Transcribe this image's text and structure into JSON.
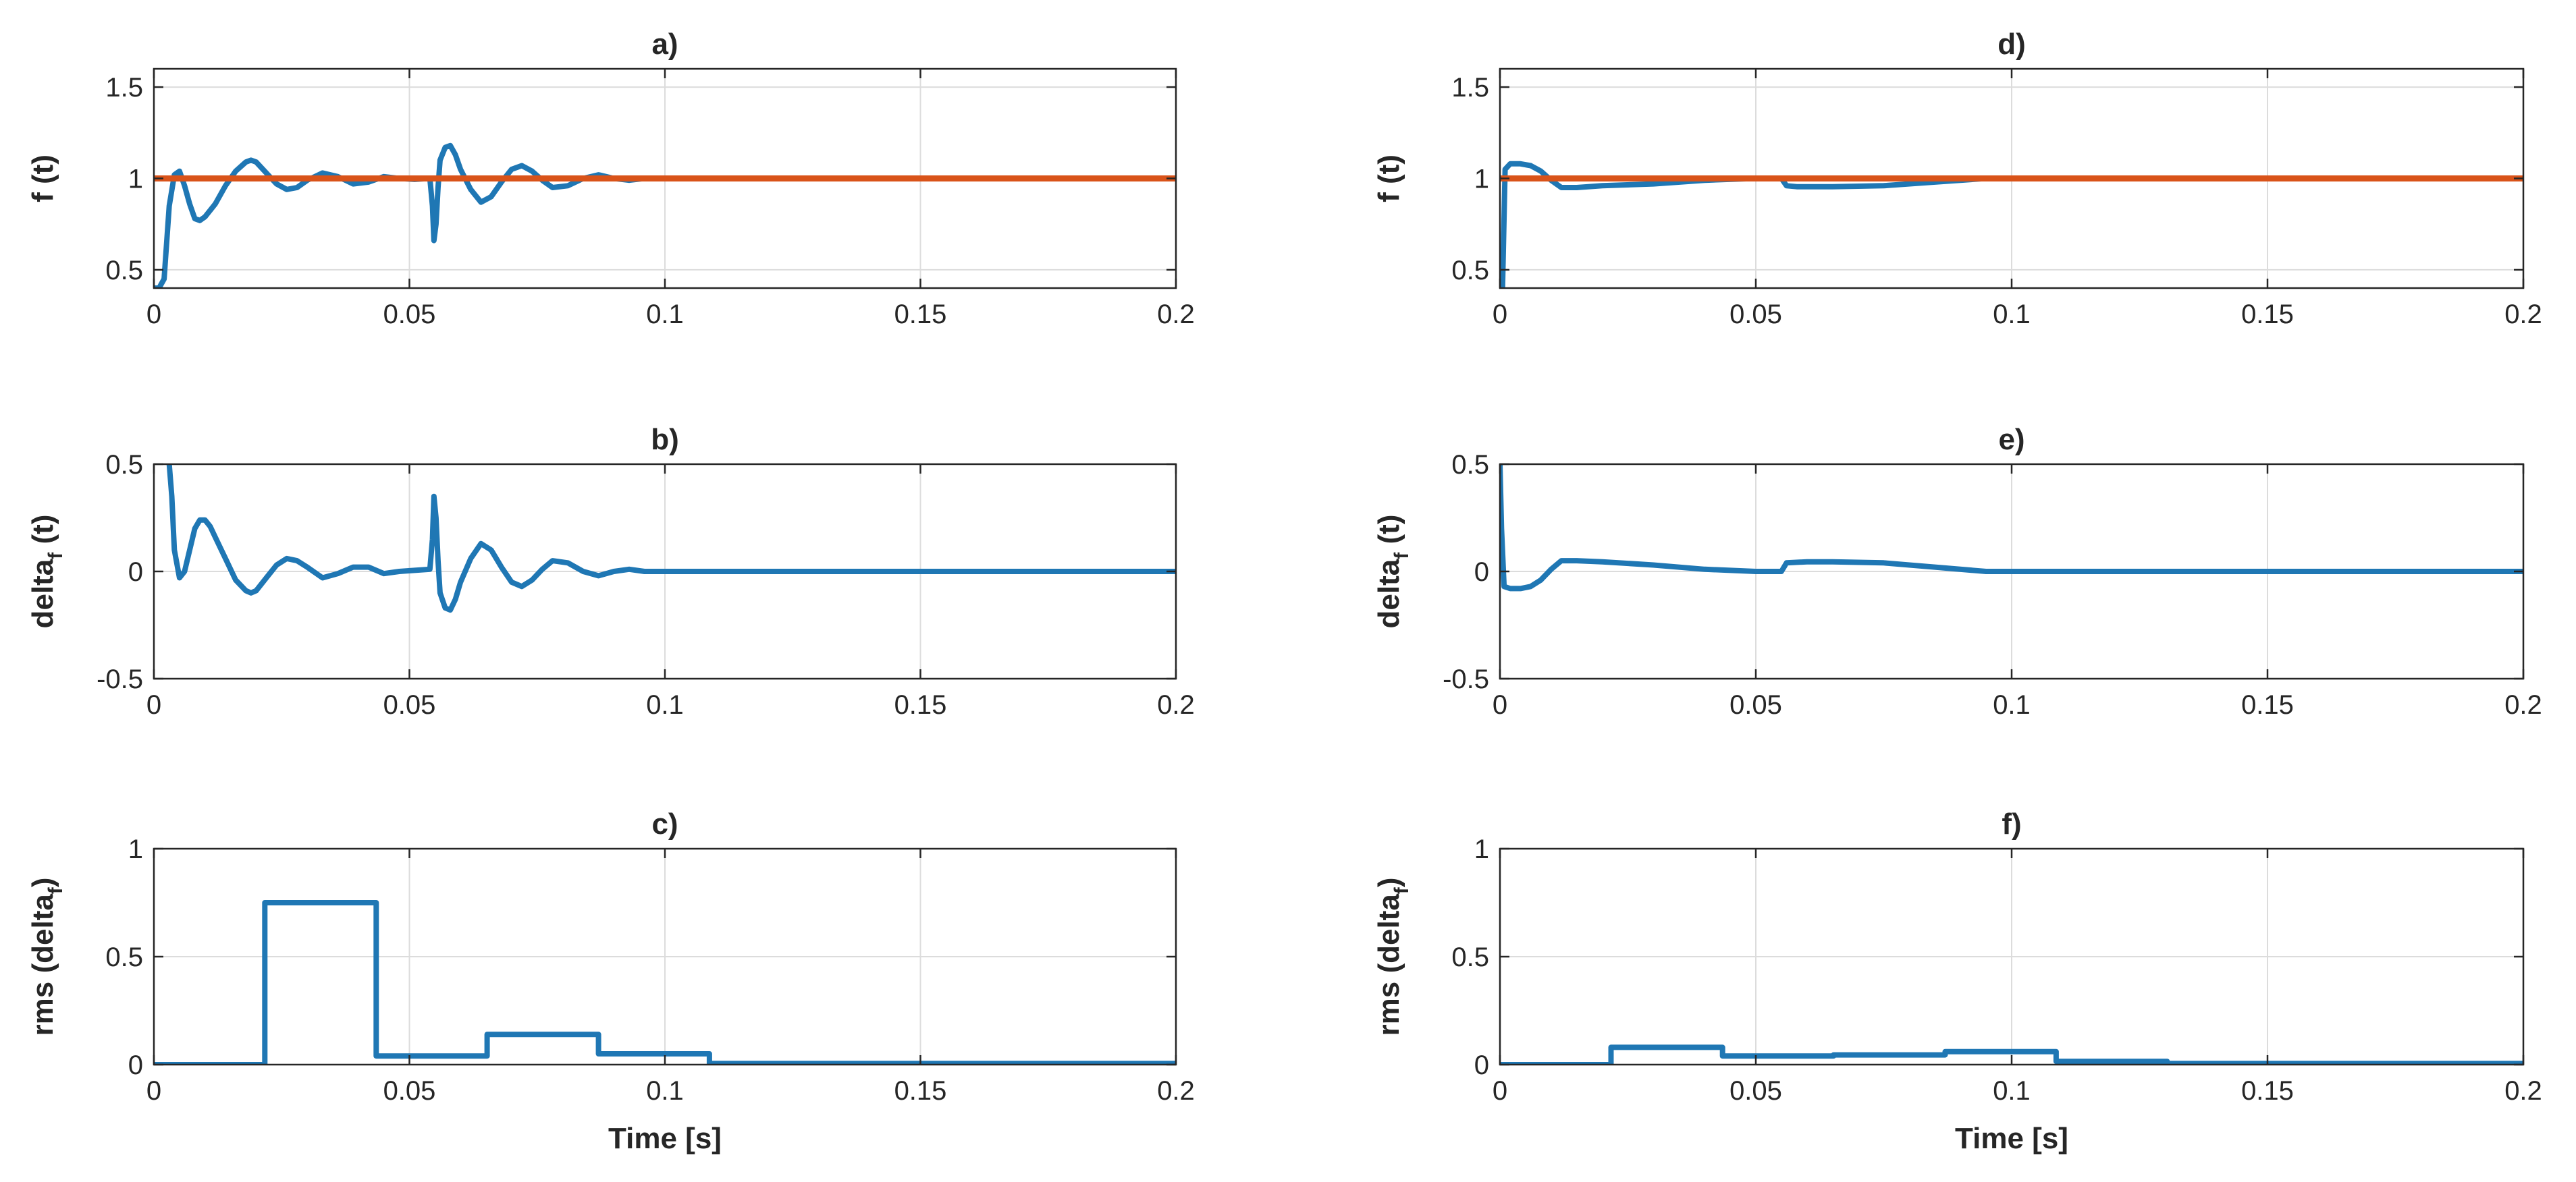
{
  "colors": {
    "series_blue": "#1f77b4",
    "reference_orange": "#d95319",
    "axis": "#262626",
    "grid": "#dcdcdc"
  },
  "chart_data": [
    {
      "id": "a",
      "type": "line",
      "title": "a)",
      "ylabel": {
        "main": "f (t)",
        "sub": ""
      },
      "xlabel": "",
      "xlim": [
        0,
        0.2
      ],
      "ylim": [
        0.4,
        1.6
      ],
      "xticks": [
        0,
        0.05,
        0.1,
        0.15,
        0.2
      ],
      "xtick_labels": [
        "0",
        "0.05",
        "0.1",
        "0.15",
        "0.2"
      ],
      "yticks": [
        0.5,
        1,
        1.5
      ],
      "ytick_labels": [
        "0.5",
        "1",
        "1.5"
      ],
      "grid": true,
      "series": [
        {
          "name": "f(t)",
          "color": "#1f77b4",
          "x": [
            0,
            0.001,
            0.002,
            0.003,
            0.004,
            0.005,
            0.006,
            0.007,
            0.008,
            0.009,
            0.01,
            0.012,
            0.014,
            0.016,
            0.018,
            0.019,
            0.02,
            0.022,
            0.024,
            0.026,
            0.028,
            0.03,
            0.033,
            0.036,
            0.039,
            0.042,
            0.045,
            0.048,
            0.051,
            0.054,
            0.0545,
            0.0548,
            0.0552,
            0.0556,
            0.056,
            0.057,
            0.058,
            0.059,
            0.06,
            0.062,
            0.064,
            0.066,
            0.068,
            0.07,
            0.072,
            0.074,
            0.076,
            0.078,
            0.081,
            0.084,
            0.087,
            0.09,
            0.093,
            0.096,
            0.1,
            0.2
          ],
          "y": [
            0.4,
            0.4,
            0.45,
            0.85,
            1.02,
            1.04,
            0.96,
            0.86,
            0.78,
            0.77,
            0.79,
            0.86,
            0.96,
            1.04,
            1.09,
            1.1,
            1.09,
            1.03,
            0.97,
            0.94,
            0.95,
            0.99,
            1.03,
            1.01,
            0.97,
            0.98,
            1.01,
            1.0,
            0.995,
            1.0,
            0.85,
            0.66,
            0.75,
            0.95,
            1.1,
            1.17,
            1.18,
            1.13,
            1.05,
            0.94,
            0.87,
            0.9,
            0.98,
            1.05,
            1.07,
            1.04,
            0.99,
            0.95,
            0.96,
            1.0,
            1.02,
            1.0,
            0.99,
            1.0,
            1.0,
            1.0
          ]
        },
        {
          "name": "reference",
          "color": "#d95319",
          "x": [
            0,
            0.2
          ],
          "y": [
            1,
            1
          ]
        }
      ]
    },
    {
      "id": "b",
      "type": "line",
      "title": "b)",
      "ylabel": {
        "main": "delta",
        "sub": "f",
        "suffix": " (t)"
      },
      "xlabel": "",
      "xlim": [
        0,
        0.2
      ],
      "ylim": [
        -0.5,
        0.5
      ],
      "xticks": [
        0,
        0.05,
        0.1,
        0.15,
        0.2
      ],
      "xtick_labels": [
        "0",
        "0.05",
        "0.1",
        "0.15",
        "0.2"
      ],
      "yticks": [
        -0.5,
        0,
        0.5
      ],
      "ytick_labels": [
        "-0.5",
        "0",
        "0.5"
      ],
      "grid": true,
      "series": [
        {
          "name": "delta_f(t)",
          "color": "#1f77b4",
          "x": [
            0.003,
            0.0035,
            0.004,
            0.005,
            0.006,
            0.007,
            0.008,
            0.009,
            0.01,
            0.011,
            0.012,
            0.014,
            0.016,
            0.018,
            0.019,
            0.02,
            0.022,
            0.024,
            0.026,
            0.028,
            0.03,
            0.033,
            0.036,
            0.039,
            0.042,
            0.045,
            0.048,
            0.051,
            0.054,
            0.0545,
            0.0548,
            0.0552,
            0.0556,
            0.056,
            0.057,
            0.058,
            0.059,
            0.06,
            0.062,
            0.064,
            0.066,
            0.068,
            0.07,
            0.072,
            0.074,
            0.076,
            0.078,
            0.081,
            0.084,
            0.087,
            0.09,
            0.093,
            0.096,
            0.1,
            0.2
          ],
          "y": [
            0.5,
            0.35,
            0.1,
            -0.03,
            0.0,
            0.1,
            0.2,
            0.24,
            0.24,
            0.21,
            0.16,
            0.06,
            -0.04,
            -0.09,
            -0.1,
            -0.09,
            -0.03,
            0.03,
            0.06,
            0.05,
            0.02,
            -0.03,
            -0.01,
            0.02,
            0.02,
            -0.01,
            0.0,
            0.005,
            0.01,
            0.15,
            0.35,
            0.25,
            0.05,
            -0.1,
            -0.17,
            -0.18,
            -0.13,
            -0.05,
            0.06,
            0.13,
            0.1,
            0.02,
            -0.05,
            -0.07,
            -0.04,
            0.01,
            0.05,
            0.04,
            0.0,
            -0.02,
            0.0,
            0.01,
            0.0,
            0.0,
            0.0
          ]
        }
      ]
    },
    {
      "id": "c",
      "type": "line",
      "title": "c)",
      "ylabel": {
        "main": "rms (delta",
        "sub": "f",
        "suffix": ")"
      },
      "xlabel": "Time [s]",
      "xlim": [
        0,
        0.2
      ],
      "ylim": [
        0,
        1
      ],
      "xticks": [
        0,
        0.05,
        0.1,
        0.15,
        0.2
      ],
      "xtick_labels": [
        "0",
        "0.05",
        "0.1",
        "0.15",
        "0.2"
      ],
      "yticks": [
        0,
        0.5,
        1
      ],
      "ytick_labels": [
        "0",
        "0.5",
        "1"
      ],
      "grid": true,
      "series": [
        {
          "name": "rms(delta_f)",
          "color": "#1f77b4",
          "x": [
            0,
            0.0217,
            0.0217,
            0.0435,
            0.0435,
            0.0652,
            0.0652,
            0.087,
            0.087,
            0.1087,
            0.1087,
            0.2
          ],
          "y": [
            0,
            0,
            0.75,
            0.75,
            0.04,
            0.04,
            0.14,
            0.14,
            0.05,
            0.05,
            0.005,
            0.005
          ]
        }
      ]
    },
    {
      "id": "d",
      "type": "line",
      "title": "d)",
      "ylabel": {
        "main": "f (t)",
        "sub": ""
      },
      "xlabel": "",
      "xlim": [
        0,
        0.2
      ],
      "ylim": [
        0.4,
        1.6
      ],
      "xticks": [
        0,
        0.05,
        0.1,
        0.15,
        0.2
      ],
      "xtick_labels": [
        "0",
        "0.05",
        "0.1",
        "0.15",
        "0.2"
      ],
      "yticks": [
        0.5,
        1,
        1.5
      ],
      "ytick_labels": [
        "0.5",
        "1",
        "1.5"
      ],
      "grid": true,
      "series": [
        {
          "name": "f(t)",
          "color": "#1f77b4",
          "x": [
            0,
            0.0005,
            0.001,
            0.002,
            0.004,
            0.006,
            0.008,
            0.01,
            0.012,
            0.015,
            0.02,
            0.03,
            0.04,
            0.05,
            0.055,
            0.056,
            0.058,
            0.065,
            0.075,
            0.085,
            0.095,
            0.1,
            0.2
          ],
          "y": [
            0.4,
            0.4,
            1.05,
            1.08,
            1.08,
            1.07,
            1.04,
            0.99,
            0.95,
            0.95,
            0.96,
            0.97,
            0.99,
            1.0,
            1.0,
            0.96,
            0.955,
            0.955,
            0.96,
            0.98,
            1.0,
            1.0,
            1.0
          ]
        },
        {
          "name": "reference",
          "color": "#d95319",
          "x": [
            0,
            0.2
          ],
          "y": [
            1,
            1
          ]
        }
      ]
    },
    {
      "id": "e",
      "type": "line",
      "title": "e)",
      "ylabel": {
        "main": "delta",
        "sub": "f",
        "suffix": " (t)"
      },
      "xlabel": "",
      "xlim": [
        0,
        0.2
      ],
      "ylim": [
        -0.5,
        0.5
      ],
      "xticks": [
        0,
        0.05,
        0.1,
        0.15,
        0.2
      ],
      "xtick_labels": [
        "0",
        "0.05",
        "0.1",
        "0.15",
        "0.2"
      ],
      "yticks": [
        -0.5,
        0,
        0.5
      ],
      "ytick_labels": [
        "-0.5",
        "0",
        "0.5"
      ],
      "grid": true,
      "series": [
        {
          "name": "delta_f(t)",
          "color": "#1f77b4",
          "x": [
            0,
            0.0003,
            0.0008,
            0.002,
            0.004,
            0.006,
            0.008,
            0.01,
            0.012,
            0.015,
            0.02,
            0.03,
            0.04,
            0.05,
            0.055,
            0.056,
            0.06,
            0.065,
            0.075,
            0.085,
            0.095,
            0.1,
            0.2
          ],
          "y": [
            0.5,
            0.2,
            -0.07,
            -0.08,
            -0.08,
            -0.07,
            -0.04,
            0.01,
            0.05,
            0.05,
            0.045,
            0.03,
            0.01,
            0.0,
            0.0,
            0.04,
            0.045,
            0.045,
            0.04,
            0.02,
            0.0,
            0.0,
            0.0
          ]
        }
      ]
    },
    {
      "id": "f",
      "type": "line",
      "title": "f)",
      "ylabel": {
        "main": "rms (delta",
        "sub": "f",
        "suffix": ")"
      },
      "xlabel": "Time [s]",
      "xlim": [
        0,
        0.2
      ],
      "ylim": [
        0,
        1
      ],
      "xticks": [
        0,
        0.05,
        0.1,
        0.15,
        0.2
      ],
      "xtick_labels": [
        "0",
        "0.05",
        "0.1",
        "0.15",
        "0.2"
      ],
      "yticks": [
        0,
        0.5,
        1
      ],
      "ytick_labels": [
        "0",
        "0.5",
        "1"
      ],
      "grid": true,
      "series": [
        {
          "name": "rms(delta_f)",
          "color": "#1f77b4",
          "x": [
            0,
            0.0217,
            0.0217,
            0.0435,
            0.0435,
            0.0652,
            0.0652,
            0.087,
            0.087,
            0.1087,
            0.1087,
            0.1304,
            0.1304,
            0.2
          ],
          "y": [
            0,
            0,
            0.08,
            0.08,
            0.04,
            0.04,
            0.045,
            0.045,
            0.06,
            0.06,
            0.015,
            0.015,
            0.005,
            0.005
          ]
        }
      ]
    }
  ]
}
